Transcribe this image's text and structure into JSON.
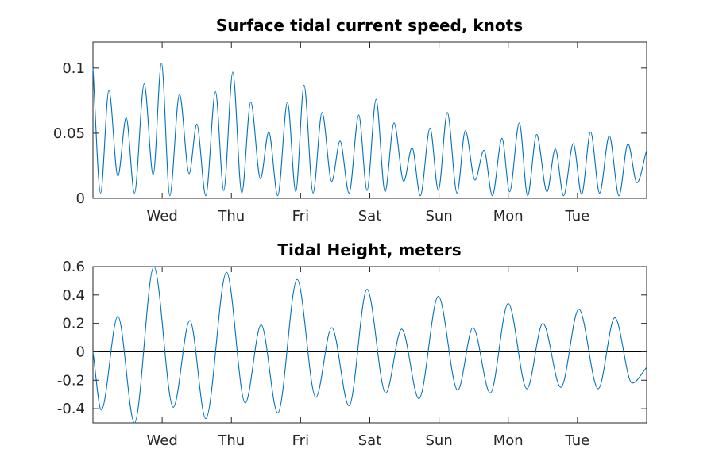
{
  "chart_data": [
    {
      "type": "line",
      "title": "Surface tidal current speed, knots",
      "xlabel": "",
      "ylabel": "",
      "x_unit": "days",
      "xlim": [
        0,
        8
      ],
      "ylim": [
        0,
        0.12
      ],
      "yticks": [
        0,
        0.05,
        0.1
      ],
      "ytick_labels": [
        "0",
        "0.05",
        "0.1"
      ],
      "xticks": [
        1,
        2,
        3,
        4,
        5,
        6,
        7
      ],
      "xtick_labels": [
        "Wed",
        "Thu",
        "Fri",
        "Sat",
        "Sun",
        "Mon",
        "Tue"
      ],
      "grid": false,
      "series": [
        {
          "color": "#0072bd",
          "points": [
            [
              0.0,
              0.1
            ],
            [
              0.11,
              0.004
            ],
            [
              0.23,
              0.083
            ],
            [
              0.36,
              0.017
            ],
            [
              0.48,
              0.062
            ],
            [
              0.6,
              0.004
            ],
            [
              0.74,
              0.088
            ],
            [
              0.87,
              0.018
            ],
            [
              0.99,
              0.104
            ],
            [
              1.11,
              0.002
            ],
            [
              1.25,
              0.08
            ],
            [
              1.39,
              0.019
            ],
            [
              1.5,
              0.057
            ],
            [
              1.63,
              0.002
            ],
            [
              1.77,
              0.082
            ],
            [
              1.89,
              0.006
            ],
            [
              2.02,
              0.097
            ],
            [
              2.15,
              0.004
            ],
            [
              2.28,
              0.074
            ],
            [
              2.42,
              0.015
            ],
            [
              2.54,
              0.051
            ],
            [
              2.67,
              0.002
            ],
            [
              2.81,
              0.074
            ],
            [
              2.93,
              0.005
            ],
            [
              3.05,
              0.087
            ],
            [
              3.18,
              0.004
            ],
            [
              3.31,
              0.066
            ],
            [
              3.45,
              0.013
            ],
            [
              3.57,
              0.044
            ],
            [
              3.7,
              0.004
            ],
            [
              3.84,
              0.064
            ],
            [
              3.96,
              0.006
            ],
            [
              4.09,
              0.076
            ],
            [
              4.22,
              0.005
            ],
            [
              4.35,
              0.058
            ],
            [
              4.49,
              0.013
            ],
            [
              4.61,
              0.039
            ],
            [
              4.73,
              0.002
            ],
            [
              4.87,
              0.054
            ],
            [
              4.99,
              0.006
            ],
            [
              5.12,
              0.066
            ],
            [
              5.26,
              0.004
            ],
            [
              5.38,
              0.052
            ],
            [
              5.52,
              0.014
            ],
            [
              5.65,
              0.037
            ],
            [
              5.77,
              0.002
            ],
            [
              5.91,
              0.046
            ],
            [
              6.02,
              0.005
            ],
            [
              6.16,
              0.058
            ],
            [
              6.28,
              0.002
            ],
            [
              6.41,
              0.049
            ],
            [
              6.56,
              0.005
            ],
            [
              6.68,
              0.038
            ],
            [
              6.8,
              0.002
            ],
            [
              6.94,
              0.042
            ],
            [
              7.06,
              0.003
            ],
            [
              7.19,
              0.051
            ],
            [
              7.32,
              0.004
            ],
            [
              7.46,
              0.048
            ],
            [
              7.6,
              0.002
            ],
            [
              7.73,
              0.042
            ],
            [
              7.86,
              0.012
            ],
            [
              8.0,
              0.037
            ]
          ]
        }
      ]
    },
    {
      "type": "line",
      "title": "Tidal Height, meters",
      "xlabel": "",
      "ylabel": "",
      "x_unit": "days",
      "xlim": [
        0,
        8
      ],
      "ylim": [
        -0.5,
        0.6
      ],
      "yticks": [
        -0.4,
        -0.2,
        0,
        0.2,
        0.4,
        0.6
      ],
      "ytick_labels": [
        "-0.4",
        "-0.2",
        "0",
        "0.2",
        "0.4",
        "0.6"
      ],
      "xticks": [
        1,
        2,
        3,
        4,
        5,
        6,
        7
      ],
      "xtick_labels": [
        "Wed",
        "Thu",
        "Fri",
        "Sat",
        "Sun",
        "Mon",
        "Tue"
      ],
      "grid": false,
      "reference_line_y": 0,
      "series": [
        {
          "color": "#0072bd",
          "points": [
            [
              0.0,
              0.0
            ],
            [
              0.12,
              -0.41
            ],
            [
              0.36,
              0.25
            ],
            [
              0.6,
              -0.5
            ],
            [
              0.88,
              0.6
            ],
            [
              1.16,
              -0.39
            ],
            [
              1.4,
              0.22
            ],
            [
              1.63,
              -0.47
            ],
            [
              1.93,
              0.56
            ],
            [
              2.2,
              -0.36
            ],
            [
              2.43,
              0.19
            ],
            [
              2.67,
              -0.43
            ],
            [
              2.95,
              0.51
            ],
            [
              3.22,
              -0.32
            ],
            [
              3.45,
              0.17
            ],
            [
              3.7,
              -0.38
            ],
            [
              3.96,
              0.44
            ],
            [
              4.23,
              -0.29
            ],
            [
              4.46,
              0.16
            ],
            [
              4.71,
              -0.33
            ],
            [
              4.99,
              0.39
            ],
            [
              5.27,
              -0.27
            ],
            [
              5.49,
              0.17
            ],
            [
              5.74,
              -0.29
            ],
            [
              6.0,
              0.34
            ],
            [
              6.27,
              -0.26
            ],
            [
              6.5,
              0.2
            ],
            [
              6.76,
              -0.25
            ],
            [
              7.02,
              0.3
            ],
            [
              7.3,
              -0.26
            ],
            [
              7.54,
              0.24
            ],
            [
              7.79,
              -0.22
            ],
            [
              8.0,
              -0.11
            ]
          ]
        }
      ]
    }
  ]
}
